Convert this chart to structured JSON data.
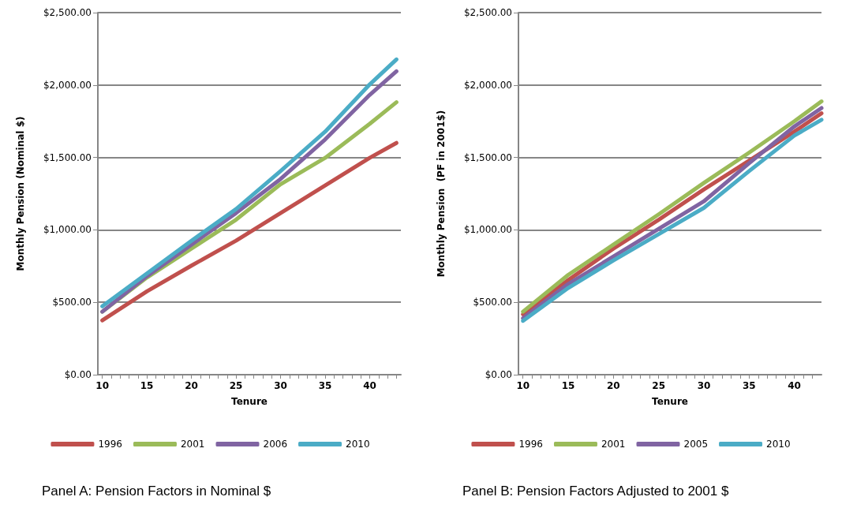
{
  "chart_data": [
    {
      "type": "line",
      "title": "Panel A: Pension Factors in Nominal $",
      "xlabel": "Tenure",
      "ylabel": "Monthly Pension (Nominal $)",
      "x": [
        10,
        15,
        20,
        25,
        30,
        35,
        40,
        43
      ],
      "series": [
        {
          "name": "1996",
          "color": "#c0504d",
          "values": [
            375,
            575,
            753,
            925,
            1116,
            1306,
            1497,
            1600
          ]
        },
        {
          "name": "2001",
          "color": "#9bbb59",
          "values": [
            435,
            671,
            871,
            1070,
            1315,
            1497,
            1732,
            1881
          ]
        },
        {
          "name": "2006",
          "color": "#8064a2",
          "values": [
            435,
            680,
            898,
            1116,
            1351,
            1624,
            1932,
            2095
          ]
        },
        {
          "name": "2010",
          "color": "#4bacc6",
          "values": [
            472,
            698,
            925,
            1143,
            1406,
            1678,
            2004,
            2177
          ]
        }
      ],
      "xlim": [
        9.5,
        43.5
      ],
      "ylim": [
        0,
        2500
      ],
      "xticks": [
        10,
        {
          "value": 11,
          "label": null
        },
        {
          "value": 12,
          "label": null
        },
        {
          "value": 13,
          "label": null
        },
        {
          "value": 14,
          "label": null
        },
        15,
        {
          "value": 16,
          "label": null
        },
        {
          "value": 17,
          "label": null
        },
        {
          "value": 18,
          "label": null
        },
        {
          "value": 19,
          "label": null
        },
        20,
        {
          "value": 21,
          "label": null
        },
        {
          "value": 22,
          "label": null
        },
        {
          "value": 23,
          "label": null
        },
        {
          "value": 24,
          "label": null
        },
        25,
        {
          "value": 26,
          "label": null
        },
        {
          "value": 27,
          "label": null
        },
        {
          "value": 28,
          "label": null
        },
        {
          "value": 29,
          "label": null
        },
        30,
        {
          "value": 31,
          "label": null
        },
        {
          "value": 32,
          "label": null
        },
        {
          "value": 33,
          "label": null
        },
        {
          "value": 34,
          "label": null
        },
        35,
        {
          "value": 36,
          "label": null
        },
        {
          "value": 37,
          "label": null
        },
        {
          "value": 38,
          "label": null
        },
        {
          "value": 39,
          "label": null
        },
        40,
        {
          "value": 41,
          "label": null
        },
        {
          "value": 42,
          "label": null
        },
        {
          "value": 43,
          "label": null
        }
      ],
      "yticks": [
        {
          "value": 0,
          "label": "$0.00"
        },
        {
          "value": 500,
          "label": "$500.00"
        },
        {
          "value": 1000,
          "label": "$1,000.00"
        },
        {
          "value": 1500,
          "label": "$1,500.00"
        },
        {
          "value": 2000,
          "label": "$2,000.00"
        },
        {
          "value": 2500,
          "label": "$2,500.00"
        }
      ],
      "grid": "y",
      "legend": "bottom",
      "marker": "none",
      "line_style": "solid"
    },
    {
      "type": "line",
      "title": "Panel B: Pension Factors Adjusted to 2001 $",
      "xlabel": "Tenure",
      "ylabel": "Monthly Pension  (PF in 2001$)",
      "x": [
        10,
        15,
        20,
        25,
        30,
        35,
        40,
        43
      ],
      "series": [
        {
          "name": "1996",
          "color": "#c0504d",
          "values": [
            417,
            653,
            871,
            1070,
            1279,
            1478,
            1678,
            1805
          ]
        },
        {
          "name": "2001",
          "color": "#9bbb59",
          "values": [
            435,
            689,
            898,
            1107,
            1324,
            1533,
            1750,
            1887
          ]
        },
        {
          "name": "2005",
          "color": "#8064a2",
          "values": [
            390,
            626,
            816,
            1007,
            1197,
            1460,
            1714,
            1841
          ]
        },
        {
          "name": "2010",
          "color": "#4bacc6",
          "values": [
            372,
            599,
            789,
            970,
            1152,
            1406,
            1651,
            1760
          ]
        }
      ],
      "xlim": [
        9.5,
        43
      ],
      "ylim": [
        0,
        2500
      ],
      "xticks": [
        10,
        {
          "value": 11,
          "label": null
        },
        {
          "value": 12,
          "label": null
        },
        {
          "value": 13,
          "label": null
        },
        {
          "value": 14,
          "label": null
        },
        15,
        {
          "value": 16,
          "label": null
        },
        {
          "value": 17,
          "label": null
        },
        {
          "value": 18,
          "label": null
        },
        {
          "value": 19,
          "label": null
        },
        20,
        {
          "value": 21,
          "label": null
        },
        {
          "value": 22,
          "label": null
        },
        {
          "value": 23,
          "label": null
        },
        {
          "value": 24,
          "label": null
        },
        25,
        {
          "value": 26,
          "label": null
        },
        {
          "value": 27,
          "label": null
        },
        {
          "value": 28,
          "label": null
        },
        {
          "value": 29,
          "label": null
        },
        30,
        {
          "value": 31,
          "label": null
        },
        {
          "value": 32,
          "label": null
        },
        {
          "value": 33,
          "label": null
        },
        {
          "value": 34,
          "label": null
        },
        35,
        {
          "value": 36,
          "label": null
        },
        {
          "value": 37,
          "label": null
        },
        {
          "value": 38,
          "label": null
        },
        {
          "value": 39,
          "label": null
        },
        40,
        {
          "value": 41,
          "label": null
        },
        {
          "value": 42,
          "label": null
        }
      ],
      "yticks": [
        {
          "value": 0,
          "label": "$0.00"
        },
        {
          "value": 500,
          "label": "$500.00"
        },
        {
          "value": 1000,
          "label": "$1,000.00"
        },
        {
          "value": 1500,
          "label": "$1,500.00"
        },
        {
          "value": 2000,
          "label": "$2,000.00"
        },
        {
          "value": 2500,
          "label": "$2,500.00"
        }
      ],
      "grid": "y",
      "legend": "bottom",
      "marker": "none",
      "line_style": "solid"
    }
  ]
}
